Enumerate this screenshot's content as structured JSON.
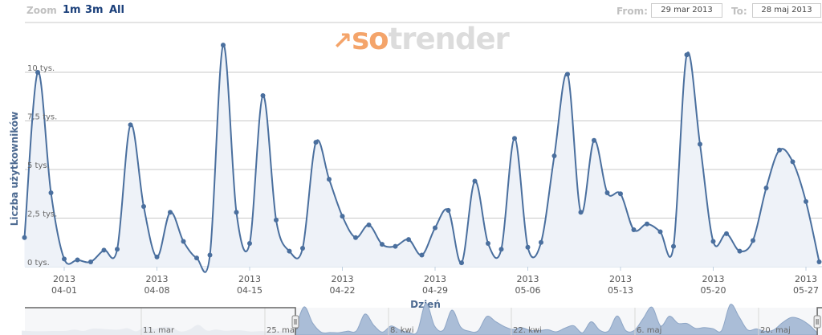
{
  "range_selector": {
    "zoom_label": "Zoom",
    "buttons": [
      "1m",
      "3m",
      "All"
    ],
    "from_label": "From:",
    "from_value": "29 mar 2013",
    "to_label": "To:",
    "to_value": "28 maj 2013"
  },
  "logo": {
    "text_a": "so",
    "text_b": "trender",
    "icon": "trend-arrow-icon"
  },
  "colors": {
    "line": "#4a6f9e",
    "area": "#eef2f8",
    "navigator_fill": "#aabdd7",
    "navigator_bg": "#e9ecf1",
    "logo_orange": "#f4a46a",
    "logo_gray": "#dcdcdc"
  },
  "chart_data": {
    "type": "area",
    "subtype": "spline with markers",
    "title": "",
    "xlabel": "Dzień",
    "ylabel": "Liczba użytkowników",
    "ylim": [
      0,
      11500
    ],
    "grid": true,
    "yticks": [
      {
        "value": 0,
        "label": "0 tys."
      },
      {
        "value": 2500,
        "label": "2,5 tys."
      },
      {
        "value": 5000,
        "label": "5 tys."
      },
      {
        "value": 7500,
        "label": "7,5 tys."
      },
      {
        "value": 10000,
        "label": "10 tys."
      }
    ],
    "xticks": [
      {
        "date": "2013-04-01",
        "line1": "2013",
        "line2": "04-01"
      },
      {
        "date": "2013-04-08",
        "line1": "2013",
        "line2": "04-08"
      },
      {
        "date": "2013-04-15",
        "line1": "2013",
        "line2": "04-15"
      },
      {
        "date": "2013-04-22",
        "line1": "2013",
        "line2": "04-22"
      },
      {
        "date": "2013-04-29",
        "line1": "2013",
        "line2": "04-29"
      },
      {
        "date": "2013-05-06",
        "line1": "2013",
        "line2": "05-06"
      },
      {
        "date": "2013-05-13",
        "line1": "2013",
        "line2": "05-13"
      },
      {
        "date": "2013-05-20",
        "line1": "2013",
        "line2": "05-20"
      },
      {
        "date": "2013-05-27",
        "line1": "2013",
        "line2": "05-27"
      }
    ],
    "x_start": "2013-03-29",
    "x_end": "2013-05-28",
    "x_interval": "1 day",
    "values": [
      1500,
      10000,
      3800,
      400,
      350,
      250,
      850,
      900,
      7300,
      3100,
      500,
      2800,
      1300,
      450,
      600,
      11400,
      2800,
      1200,
      8800,
      2400,
      800,
      950,
      6400,
      4500,
      2600,
      1500,
      2150,
      1150,
      1050,
      1400,
      600,
      2000,
      2900,
      200,
      4400,
      1200,
      900,
      6600,
      1000,
      1250,
      5700,
      9900,
      2800,
      6500,
      3800,
      3750,
      1900,
      2200,
      1800,
      1050,
      10900,
      6300,
      1300,
      1700,
      800,
      1350,
      4050,
      6000,
      5400,
      3350,
      250
    ],
    "navigator": {
      "labels": [
        "11. mar",
        "25. mar",
        "8. kwi",
        "22. kwi",
        "6. maj",
        "20. maj"
      ],
      "selected_from": "2013-03-29",
      "selected_to": "2013-05-28"
    }
  }
}
